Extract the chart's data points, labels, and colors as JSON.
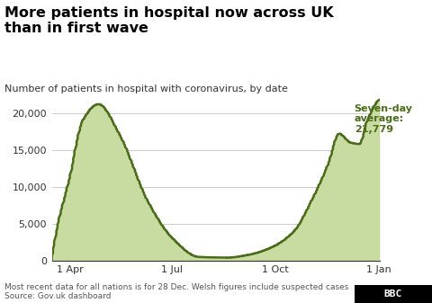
{
  "title": "More patients in hospital now across UK\nthan in first wave",
  "subtitle": "Number of patients in hospital with coronavirus, by date",
  "footer1": "Most recent data for all nations is for 28 Dec. Welsh figures include suspected cases",
  "footer2": "Source: Gov.uk dashboard",
  "annotation_label": "Seven-day\naverage:\n21,779",
  "line_color": "#4a6b1a",
  "fill_color": "#c8dba0",
  "title_color": "#000000",
  "subtitle_color": "#333333",
  "annotation_color": "#4a6b1a",
  "ylabel_ticks": [
    0,
    5000,
    10000,
    15000,
    20000
  ],
  "ylabel_labels": [
    "0",
    "5,000",
    "10,000",
    "15,000",
    "20,000"
  ],
  "xtick_labels": [
    "1 Apr",
    "1 Jul",
    "1 Oct",
    "1 Jan"
  ],
  "ylim": [
    0,
    23000
  ],
  "bg_color": "#ffffff",
  "footer_color": "#555555",
  "grid_color": "#cccccc"
}
